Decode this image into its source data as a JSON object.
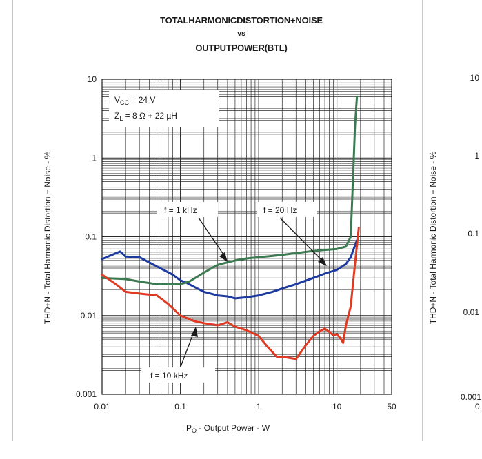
{
  "chart_data": {
    "type": "line",
    "title": "TOTALHARMONICDISTORTION+NOISE",
    "title_vs": "vs",
    "subtitle": "OUTPUTPOWER(BTL)",
    "xlabel": "P",
    "xlabel_sub": "O",
    "xlabel_rest": " - Output Power - W",
    "ylabel": "THD+N - Total Harmonic Distortion + Noise - %",
    "x_scale": "log",
    "y_scale": "log",
    "xlim": [
      0.01,
      50
    ],
    "ylim": [
      0.001,
      10
    ],
    "x_ticks": [
      "0.01",
      "0.1",
      "1",
      "10",
      "50"
    ],
    "x_tick_values": [
      0.01,
      0.1,
      1,
      10,
      50
    ],
    "y_ticks": [
      "0.001",
      "0.01",
      "0.1",
      "1",
      "10"
    ],
    "y_tick_values": [
      0.001,
      0.01,
      0.1,
      1,
      10
    ],
    "grid": true,
    "conditions": {
      "vcc_prefix": "V",
      "vcc_sub": "CC",
      "vcc_rest": " = 24 V",
      "zl_prefix": "Z",
      "zl_sub": "L",
      "zl_rest": " = 8 Ω + 22 µH"
    },
    "colors": {
      "f_20hz": "#1c3aa0",
      "f_1khz": "#3c7a52",
      "f_10khz": "#e03a22"
    },
    "series": [
      {
        "name": "f = 20 Hz",
        "color": "#1c3aa0",
        "x": [
          0.01,
          0.013,
          0.017,
          0.02,
          0.03,
          0.05,
          0.08,
          0.1,
          0.12,
          0.14,
          0.2,
          0.3,
          0.4,
          0.5,
          0.7,
          1,
          1.5,
          2,
          3,
          5,
          7,
          10,
          13,
          15,
          18
        ],
        "y": [
          0.052,
          0.058,
          0.065,
          0.056,
          0.055,
          0.042,
          0.033,
          0.028,
          0.026,
          0.024,
          0.02,
          0.018,
          0.0175,
          0.0165,
          0.017,
          0.018,
          0.02,
          0.022,
          0.025,
          0.03,
          0.034,
          0.038,
          0.045,
          0.055,
          0.09
        ]
      },
      {
        "name": "f = 1 kHz",
        "color": "#3c7a52",
        "x": [
          0.01,
          0.02,
          0.03,
          0.05,
          0.08,
          0.1,
          0.13,
          0.2,
          0.3,
          0.5,
          0.7,
          1,
          1.5,
          2,
          3,
          5,
          7,
          10,
          13,
          15,
          16,
          17,
          18
        ],
        "y": [
          0.03,
          0.029,
          0.027,
          0.025,
          0.025,
          0.025,
          0.027,
          0.035,
          0.044,
          0.05,
          0.053,
          0.055,
          0.057,
          0.059,
          0.062,
          0.066,
          0.068,
          0.07,
          0.075,
          0.1,
          0.5,
          2.5,
          6
        ]
      },
      {
        "name": "f = 10 kHz",
        "color": "#e03a22",
        "x": [
          0.01,
          0.015,
          0.02,
          0.03,
          0.05,
          0.07,
          0.1,
          0.15,
          0.2,
          0.3,
          0.4,
          0.5,
          0.7,
          1,
          1.3,
          1.7,
          2,
          3,
          4,
          5,
          6,
          7,
          8,
          9,
          10,
          11,
          12,
          13,
          15,
          17,
          19
        ],
        "y": [
          0.033,
          0.025,
          0.02,
          0.019,
          0.018,
          0.014,
          0.01,
          0.0085,
          0.008,
          0.0075,
          0.0082,
          0.0072,
          0.0065,
          0.0055,
          0.004,
          0.003,
          0.003,
          0.0028,
          0.0042,
          0.0055,
          0.0063,
          0.0068,
          0.0062,
          0.0056,
          0.0058,
          0.0052,
          0.0045,
          0.0075,
          0.013,
          0.045,
          0.13
        ]
      }
    ],
    "annotations": [
      {
        "text": "f = 1 kHz"
      },
      {
        "text": "f = 20 Hz"
      },
      {
        "text": "f = 10 kHz"
      }
    ],
    "right_panel_ticks": [
      "10",
      "1",
      "0.1",
      "0.01",
      "0.001",
      "0."
    ]
  }
}
